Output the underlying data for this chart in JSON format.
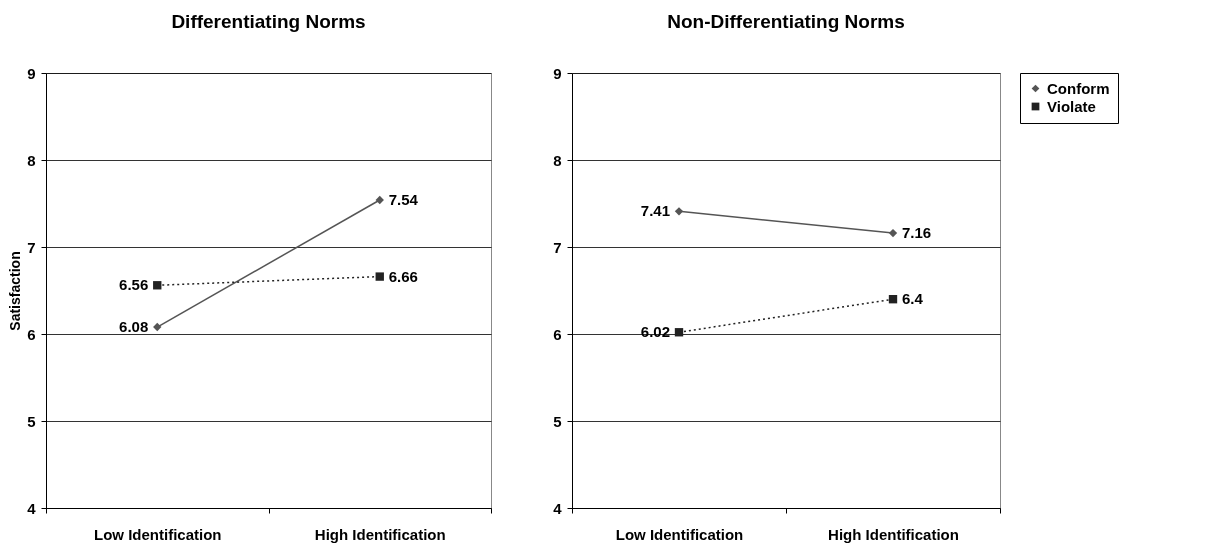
{
  "chart_data": [
    {
      "type": "line",
      "title": "Differentiating Norms",
      "ylabel": "Satisfaction",
      "categories": [
        "Low Identification",
        "High Identification"
      ],
      "ylim": [
        4,
        9
      ],
      "yticks": [
        4,
        5,
        6,
        7,
        8,
        9
      ],
      "grid": "y",
      "legend": false,
      "data_labels": true,
      "series": [
        {
          "color": "#555555",
          "values": [
            6.08,
            7.54
          ],
          "marker": "diamond",
          "line_style": "solid"
        },
        {
          "color": "#222222",
          "values": [
            6.56,
            6.66
          ],
          "marker": "square",
          "line_style": "dotted"
        }
      ]
    },
    {
      "type": "line",
      "title": "Non-Differentiating Norms",
      "categories": [
        "Low Identification",
        "High Identification"
      ],
      "ylim": [
        4,
        9
      ],
      "yticks": [
        4,
        5,
        6,
        7,
        8,
        9
      ],
      "grid": "y",
      "legend": "right",
      "data_labels": true,
      "series": [
        {
          "name": "Conform",
          "color": "#555555",
          "values": [
            7.41,
            7.16
          ],
          "marker": "diamond",
          "line_style": "solid"
        },
        {
          "name": "Violate",
          "color": "#222222",
          "values": [
            6.02,
            6.4
          ],
          "marker": "square",
          "line_style": "dotted"
        }
      ]
    }
  ]
}
